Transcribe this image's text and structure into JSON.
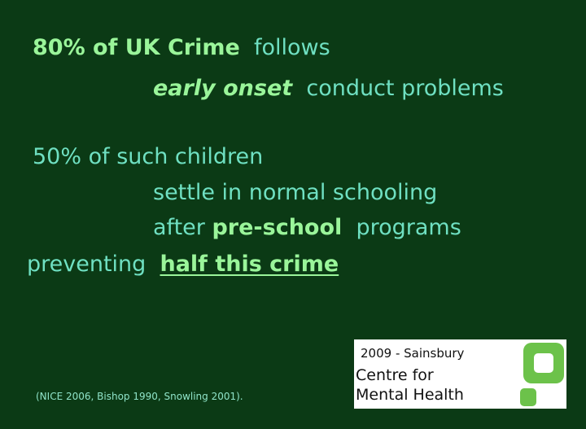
{
  "slide": {
    "line1": {
      "bold": "80% of UK Crime",
      "rest": "follows"
    },
    "line2": {
      "bold": "early onset",
      "rest": "conduct  problems"
    },
    "line3": "50% of such children",
    "line4": "settle in normal schooling",
    "line5": {
      "pre": "after",
      "bold": "pre-school",
      "rest": "programs"
    },
    "line6": {
      "pre": "preventing",
      "bold": "half  this crime"
    },
    "citation": "(NICE 2006,  Bishop 1990,  Snowling 2001)."
  },
  "logo": {
    "year": "2009 - Sainsbury",
    "line1": "Centre for",
    "line2": "Mental Health",
    "mark_color": "#6cc24a"
  },
  "colors": {
    "background": "#0b3a15",
    "text": "#6fe0c2",
    "highlight": "#9af59a"
  }
}
